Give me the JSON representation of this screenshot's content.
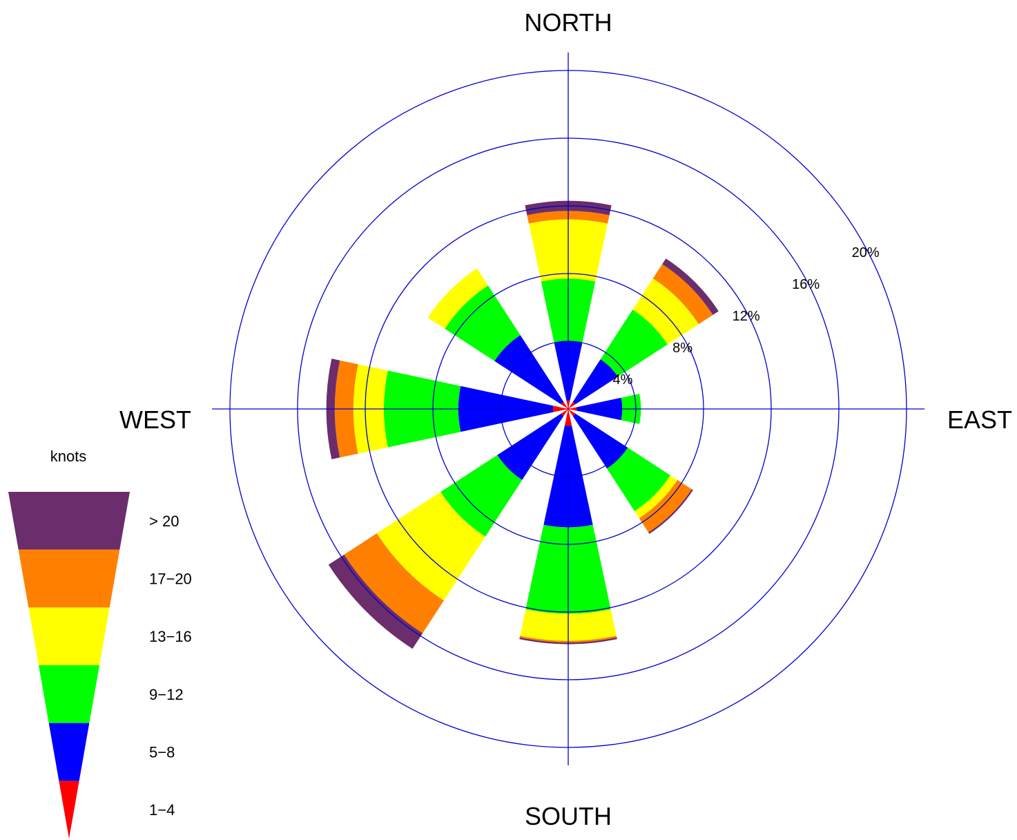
{
  "chart_data": {
    "type": "wind-rose",
    "directions": {
      "north": "NORTH",
      "south": "SOUTH",
      "east": "EAST",
      "west": "WEST"
    },
    "rings": [
      {
        "value": 4,
        "label": "4%"
      },
      {
        "value": 8,
        "label": "8%"
      },
      {
        "value": 12,
        "label": "12%"
      },
      {
        "value": 16,
        "label": "16%"
      },
      {
        "value": 20,
        "label": "20%"
      }
    ],
    "max_percent": 20,
    "legend": {
      "title": "knots",
      "bins": [
        {
          "label": "1−4",
          "color": "#ff0000"
        },
        {
          "label": "5−8",
          "color": "#0000ff"
        },
        {
          "label": "9−12",
          "color": "#00ff00"
        },
        {
          "label": "13−16",
          "color": "#ffff00"
        },
        {
          "label": "17−20",
          "color": "#ff8000"
        },
        {
          "label": "> 20",
          "color": "#6b2d6b"
        }
      ]
    },
    "colors": {
      "grid": "#0000cc"
    },
    "sector_width_deg": 24,
    "unit": "%",
    "series": [
      {
        "direction_deg": 0,
        "cumulative": [
          0.5,
          4.0,
          7.7,
          11.2,
          11.7,
          12.3
        ]
      },
      {
        "direction_deg": 45,
        "cumulative": [
          0.5,
          3.5,
          7.0,
          9.2,
          10.2,
          10.6
        ]
      },
      {
        "direction_deg": 90,
        "cumulative": [
          0.5,
          3.2,
          4.3,
          4.3,
          4.3,
          4.3
        ]
      },
      {
        "direction_deg": 135,
        "cumulative": [
          0.5,
          4.2,
          7.2,
          7.7,
          8.7,
          8.8
        ]
      },
      {
        "direction_deg": 180,
        "cumulative": [
          1.0,
          7.0,
          12.1,
          13.7,
          13.8,
          13.9
        ]
      },
      {
        "direction_deg": 225,
        "cumulative": [
          0.5,
          5.0,
          9.0,
          13.5,
          15.8,
          16.9
        ]
      },
      {
        "direction_deg": 270,
        "cumulative": [
          0.9,
          6.5,
          10.9,
          12.7,
          13.8,
          14.3
        ]
      },
      {
        "direction_deg": 315,
        "cumulative": [
          0.5,
          5.2,
          8.7,
          9.9,
          9.9,
          9.9
        ]
      }
    ]
  }
}
